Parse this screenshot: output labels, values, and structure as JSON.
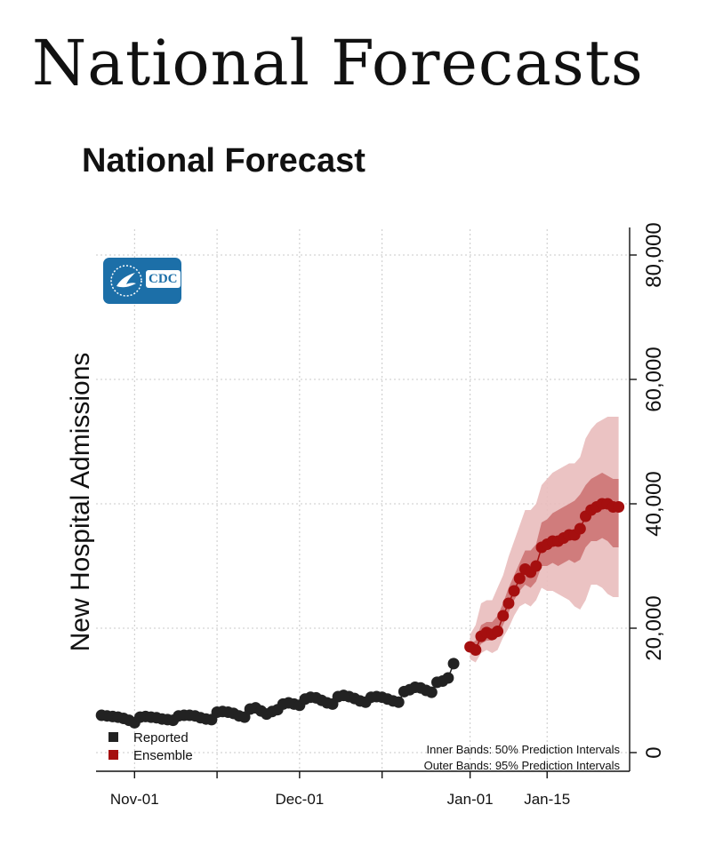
{
  "page": {
    "heading": "National Forecasts",
    "logo_text": "CDC",
    "logo_icon": "hhs-eagle-icon"
  },
  "chart_data": {
    "type": "line",
    "title": "National Forecast",
    "xlabel": "",
    "ylabel": "New Hospital Admissions",
    "y_axis_side": "right",
    "ylim": [
      0,
      85000
    ],
    "xlim": [
      "2021-10-25",
      "2022-01-30"
    ],
    "y_ticks": [
      0,
      20000,
      40000,
      60000,
      80000
    ],
    "y_tick_labels": [
      "0",
      "20,000",
      "40,000",
      "60,000",
      "80,000"
    ],
    "x_ticks": [
      "2021-11-01",
      "2021-12-01",
      "2022-01-01",
      "2022-01-15"
    ],
    "x_tick_labels": [
      "Nov-01",
      "Dec-01",
      "Jan-01",
      "Jan-15"
    ],
    "x_minor_ticks": [
      "2021-11-16",
      "2021-12-16"
    ],
    "grid": true,
    "legend_position": "bottom-left",
    "legend": [
      "Reported",
      "Ensemble"
    ],
    "annotations": [
      "Inner Bands: 50% Prediction Intervals",
      "Outer Bands: 95% Prediction Intervals"
    ],
    "colors": {
      "reported": "#222222",
      "ensemble": "#a50f0f",
      "band_inner": "#c96a6a",
      "band_outer": "#e9bcbc",
      "grid": "#c8c8c8"
    },
    "series": [
      {
        "name": "Reported",
        "x": [
          "2021-10-26",
          "2021-10-27",
          "2021-10-28",
          "2021-10-29",
          "2021-10-30",
          "2021-10-31",
          "2021-11-01",
          "2021-11-02",
          "2021-11-03",
          "2021-11-04",
          "2021-11-05",
          "2021-11-06",
          "2021-11-07",
          "2021-11-08",
          "2021-11-09",
          "2021-11-10",
          "2021-11-11",
          "2021-11-12",
          "2021-11-13",
          "2021-11-14",
          "2021-11-15",
          "2021-11-16",
          "2021-11-17",
          "2021-11-18",
          "2021-11-19",
          "2021-11-20",
          "2021-11-21",
          "2021-11-22",
          "2021-11-23",
          "2021-11-24",
          "2021-11-25",
          "2021-11-26",
          "2021-11-27",
          "2021-11-28",
          "2021-11-29",
          "2021-11-30",
          "2021-12-01",
          "2021-12-02",
          "2021-12-03",
          "2021-12-04",
          "2021-12-05",
          "2021-12-06",
          "2021-12-07",
          "2021-12-08",
          "2021-12-09",
          "2021-12-10",
          "2021-12-11",
          "2021-12-12",
          "2021-12-13",
          "2021-12-14",
          "2021-12-15",
          "2021-12-16",
          "2021-12-17",
          "2021-12-18",
          "2021-12-19",
          "2021-12-20",
          "2021-12-21",
          "2021-12-22",
          "2021-12-23",
          "2021-12-24",
          "2021-12-25",
          "2021-12-26",
          "2021-12-27",
          "2021-12-28",
          "2021-12-29"
        ],
        "values": [
          6000,
          5900,
          5800,
          5700,
          5500,
          5200,
          4800,
          5700,
          5800,
          5700,
          5600,
          5400,
          5300,
          5200,
          5900,
          6000,
          6000,
          5900,
          5600,
          5400,
          5300,
          6500,
          6600,
          6500,
          6300,
          5900,
          5700,
          7000,
          7200,
          6700,
          6200,
          6600,
          6900,
          7800,
          8000,
          7800,
          7600,
          8600,
          8900,
          8800,
          8400,
          8000,
          7800,
          9000,
          9200,
          9000,
          8700,
          8300,
          8100,
          8900,
          9000,
          8900,
          8600,
          8300,
          8100,
          9800,
          10100,
          10500,
          10400,
          10000,
          9700,
          11300,
          11500,
          12000,
          14300
        ]
      },
      {
        "name": "Ensemble",
        "x": [
          "2022-01-01",
          "2022-01-02",
          "2022-01-03",
          "2022-01-04",
          "2022-01-05",
          "2022-01-06",
          "2022-01-07",
          "2022-01-08",
          "2022-01-09",
          "2022-01-10",
          "2022-01-11",
          "2022-01-12",
          "2022-01-13",
          "2022-01-14",
          "2022-01-15",
          "2022-01-16",
          "2022-01-17",
          "2022-01-18",
          "2022-01-19",
          "2022-01-20",
          "2022-01-21",
          "2022-01-22",
          "2022-01-23",
          "2022-01-24",
          "2022-01-25",
          "2022-01-26",
          "2022-01-27",
          "2022-01-28"
        ],
        "values": [
          17000,
          16500,
          18700,
          19300,
          19000,
          19500,
          22000,
          24000,
          26000,
          28000,
          29500,
          29000,
          30000,
          33000,
          33500,
          34000,
          34000,
          34500,
          35000,
          35000,
          36000,
          38000,
          39000,
          39500,
          40000,
          40000,
          39500,
          39500
        ],
        "band50_low": [
          16500,
          16000,
          17500,
          18000,
          18000,
          18500,
          20500,
          22500,
          24500,
          26000,
          27000,
          26500,
          27500,
          30000,
          30000,
          30500,
          30000,
          30500,
          31000,
          30500,
          31000,
          33000,
          34000,
          34000,
          34500,
          34000,
          33000,
          33000
        ],
        "band50_high": [
          17500,
          18000,
          20500,
          21000,
          21000,
          22000,
          24000,
          26500,
          28500,
          30500,
          32500,
          32500,
          33500,
          37000,
          37500,
          38500,
          39000,
          39500,
          40000,
          40500,
          41500,
          43000,
          44000,
          44500,
          45000,
          44500,
          44000,
          44000
        ],
        "band95_low": [
          15000,
          14500,
          16000,
          16500,
          16000,
          16500,
          18500,
          20000,
          22000,
          23500,
          24000,
          23500,
          24500,
          26500,
          26000,
          26000,
          25500,
          25000,
          24500,
          23500,
          23000,
          24500,
          27000,
          27000,
          26500,
          25500,
          25000,
          25000
        ],
        "band95_high": [
          19000,
          20500,
          24000,
          24500,
          24500,
          26500,
          28500,
          31500,
          34000,
          36500,
          39000,
          39000,
          40000,
          43000,
          44000,
          45000,
          45500,
          46000,
          46500,
          46500,
          47500,
          50500,
          52000,
          53000,
          53500,
          54000,
          54000,
          54000
        ]
      }
    ]
  }
}
